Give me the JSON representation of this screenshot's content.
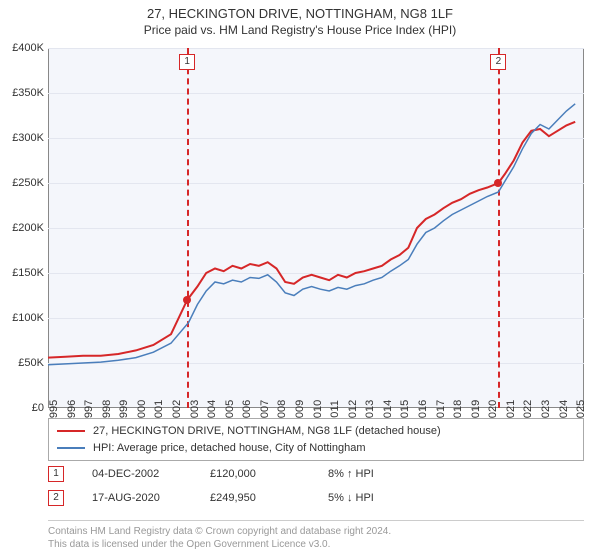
{
  "title": "27, HECKINGTON DRIVE, NOTTINGHAM, NG8 1LF",
  "subtitle": "Price paid vs. HM Land Registry's House Price Index (HPI)",
  "chart": {
    "type": "line",
    "background_color": "#f4f6fb",
    "grid_color": "#e3e6ef",
    "border_color": "#888888",
    "ylim": [
      0,
      400000
    ],
    "ytick_step": 50000,
    "y_ticks": [
      "£0",
      "£50K",
      "£100K",
      "£150K",
      "£200K",
      "£250K",
      "£300K",
      "£350K",
      "£400K"
    ],
    "xlim": [
      1995,
      2025.5
    ],
    "x_ticks": [
      1995,
      1996,
      1997,
      1998,
      1999,
      2000,
      2001,
      2002,
      2003,
      2004,
      2005,
      2006,
      2007,
      2008,
      2009,
      2010,
      2011,
      2012,
      2013,
      2014,
      2015,
      2016,
      2017,
      2018,
      2019,
      2020,
      2021,
      2022,
      2023,
      2024,
      2025
    ],
    "series": [
      {
        "name": "27, HECKINGTON DRIVE, NOTTINGHAM, NG8 1LF (detached house)",
        "color": "#d62728",
        "line_width": 2,
        "data": [
          [
            1995,
            56000
          ],
          [
            1996,
            57000
          ],
          [
            1997,
            58000
          ],
          [
            1998,
            58000
          ],
          [
            1999,
            60000
          ],
          [
            2000,
            64000
          ],
          [
            2001,
            70000
          ],
          [
            2002,
            82000
          ],
          [
            2002.92,
            120000
          ],
          [
            2003.5,
            135000
          ],
          [
            2004,
            150000
          ],
          [
            2004.5,
            155000
          ],
          [
            2005,
            152000
          ],
          [
            2005.5,
            158000
          ],
          [
            2006,
            155000
          ],
          [
            2006.5,
            160000
          ],
          [
            2007,
            158000
          ],
          [
            2007.5,
            162000
          ],
          [
            2008,
            155000
          ],
          [
            2008.5,
            140000
          ],
          [
            2009,
            138000
          ],
          [
            2009.5,
            145000
          ],
          [
            2010,
            148000
          ],
          [
            2010.5,
            145000
          ],
          [
            2011,
            142000
          ],
          [
            2011.5,
            148000
          ],
          [
            2012,
            145000
          ],
          [
            2012.5,
            150000
          ],
          [
            2013,
            152000
          ],
          [
            2013.5,
            155000
          ],
          [
            2014,
            158000
          ],
          [
            2014.5,
            165000
          ],
          [
            2015,
            170000
          ],
          [
            2015.5,
            178000
          ],
          [
            2016,
            200000
          ],
          [
            2016.5,
            210000
          ],
          [
            2017,
            215000
          ],
          [
            2017.5,
            222000
          ],
          [
            2018,
            228000
          ],
          [
            2018.5,
            232000
          ],
          [
            2019,
            238000
          ],
          [
            2019.5,
            242000
          ],
          [
            2020,
            245000
          ],
          [
            2020.63,
            249950
          ],
          [
            2021,
            260000
          ],
          [
            2021.5,
            275000
          ],
          [
            2022,
            295000
          ],
          [
            2022.5,
            308000
          ],
          [
            2023,
            310000
          ],
          [
            2023.5,
            302000
          ],
          [
            2024,
            308000
          ],
          [
            2024.5,
            314000
          ],
          [
            2025,
            318000
          ]
        ]
      },
      {
        "name": "HPI: Average price, detached house, City of Nottingham",
        "color": "#4a7ebb",
        "line_width": 1.5,
        "data": [
          [
            1995,
            48000
          ],
          [
            1996,
            49000
          ],
          [
            1997,
            50000
          ],
          [
            1998,
            51000
          ],
          [
            1999,
            53000
          ],
          [
            2000,
            56000
          ],
          [
            2001,
            62000
          ],
          [
            2002,
            72000
          ],
          [
            2003,
            95000
          ],
          [
            2003.5,
            115000
          ],
          [
            2004,
            130000
          ],
          [
            2004.5,
            140000
          ],
          [
            2005,
            138000
          ],
          [
            2005.5,
            142000
          ],
          [
            2006,
            140000
          ],
          [
            2006.5,
            145000
          ],
          [
            2007,
            144000
          ],
          [
            2007.5,
            148000
          ],
          [
            2008,
            140000
          ],
          [
            2008.5,
            128000
          ],
          [
            2009,
            125000
          ],
          [
            2009.5,
            132000
          ],
          [
            2010,
            135000
          ],
          [
            2010.5,
            132000
          ],
          [
            2011,
            130000
          ],
          [
            2011.5,
            134000
          ],
          [
            2012,
            132000
          ],
          [
            2012.5,
            136000
          ],
          [
            2013,
            138000
          ],
          [
            2013.5,
            142000
          ],
          [
            2014,
            145000
          ],
          [
            2014.5,
            152000
          ],
          [
            2015,
            158000
          ],
          [
            2015.5,
            165000
          ],
          [
            2016,
            182000
          ],
          [
            2016.5,
            195000
          ],
          [
            2017,
            200000
          ],
          [
            2017.5,
            208000
          ],
          [
            2018,
            215000
          ],
          [
            2018.5,
            220000
          ],
          [
            2019,
            225000
          ],
          [
            2019.5,
            230000
          ],
          [
            2020,
            235000
          ],
          [
            2020.63,
            240000
          ],
          [
            2021,
            252000
          ],
          [
            2021.5,
            268000
          ],
          [
            2022,
            288000
          ],
          [
            2022.5,
            305000
          ],
          [
            2023,
            315000
          ],
          [
            2023.5,
            310000
          ],
          [
            2024,
            320000
          ],
          [
            2024.5,
            330000
          ],
          [
            2025,
            338000
          ]
        ]
      }
    ],
    "vlines": [
      {
        "x": 2002.92,
        "color": "#d62728",
        "label": "1"
      },
      {
        "x": 2020.63,
        "color": "#d62728",
        "label": "2"
      }
    ],
    "markers": [
      {
        "x": 2002.92,
        "y": 120000,
        "color": "#d62728"
      },
      {
        "x": 2020.63,
        "y": 249950,
        "color": "#d62728"
      }
    ]
  },
  "legend": [
    {
      "color": "#d62728",
      "label": "27, HECKINGTON DRIVE, NOTTINGHAM, NG8 1LF (detached house)"
    },
    {
      "color": "#4a7ebb",
      "label": "HPI: Average price, detached house, City of Nottingham"
    }
  ],
  "sales": [
    {
      "marker": "1",
      "marker_color": "#d62728",
      "date": "04-DEC-2002",
      "price": "£120,000",
      "delta": "8% ↑ HPI"
    },
    {
      "marker": "2",
      "marker_color": "#d62728",
      "date": "17-AUG-2020",
      "price": "£249,950",
      "delta": "5% ↓ HPI"
    }
  ],
  "footer": {
    "line1": "Contains HM Land Registry data © Crown copyright and database right 2024.",
    "line2": "This data is licensed under the Open Government Licence v3.0."
  }
}
